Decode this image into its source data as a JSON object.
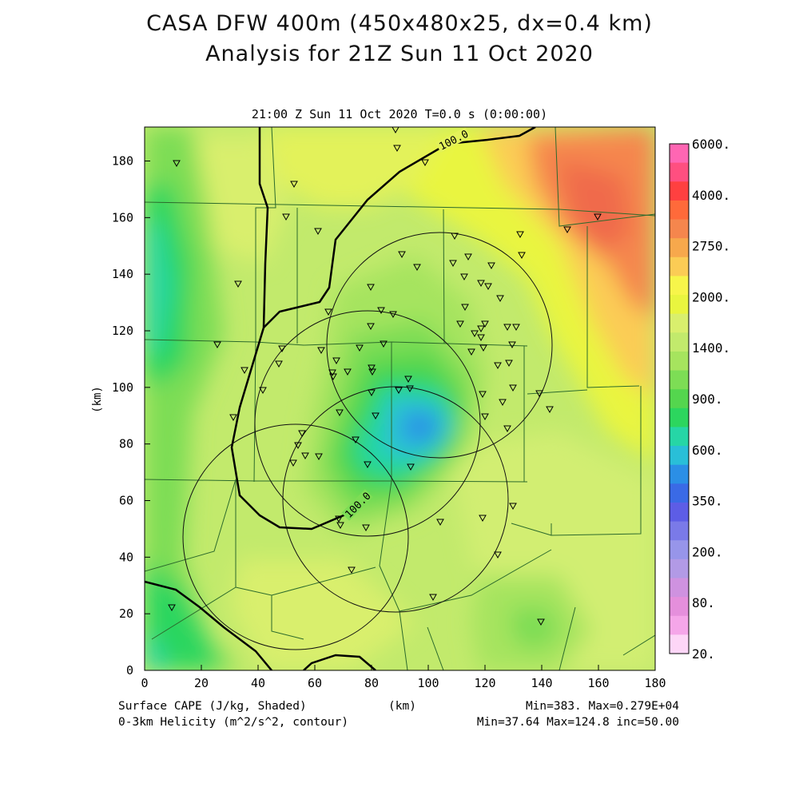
{
  "title_line1": "CASA DFW 400m (450x480x25, dx=0.4 km)",
  "title_line2": "Analysis for 21Z Sun 11 Oct 2020",
  "subtitle": "21:00 Z Sun 11 Oct 2020    T=0.0 s (0:00:00)",
  "footer": {
    "field1": "Surface CAPE (J/kg, Shaded)",
    "field2": "0-3km Helicity (m^2/s^2, contour)",
    "xunit": "(km)",
    "stats1": "Min=383. Max=0.279E+04",
    "stats2": "Min=37.64 Max=124.8 inc=50.00"
  },
  "axes": {
    "ylabel": "(km)",
    "xrange": [
      0,
      180
    ],
    "yrange": [
      0,
      192
    ],
    "xticks": [
      "0",
      "20",
      "40",
      "60",
      "80",
      "100",
      "120",
      "140",
      "160",
      "180"
    ],
    "yticks": [
      "0",
      "20",
      "40",
      "60",
      "80",
      "100",
      "120",
      "140",
      "160",
      "180"
    ]
  },
  "colorbar": {
    "labels": [
      "6000.",
      "4000.",
      "2750.",
      "2000.",
      "1400.",
      "900.",
      "600.",
      "350.",
      "200.",
      "80.",
      "20."
    ],
    "colors": [
      "#ff66b3",
      "#ff4f80",
      "#ff4040",
      "#ff6a3a",
      "#f5864d",
      "#f7a84c",
      "#fbcc55",
      "#f7f54a",
      "#e9f53f",
      "#d9ef6d",
      "#c2ea6c",
      "#a6e45e",
      "#7ddd55",
      "#54d64e",
      "#2cd65e",
      "#26d6a6",
      "#29bfd8",
      "#2b8fe6",
      "#3a6ae6",
      "#5d5de6",
      "#7a7ae8",
      "#9795ea",
      "#b29ae6",
      "#cf92e0",
      "#e58fdc",
      "#f5a6e9",
      "#fdd6f7"
    ]
  },
  "contour_labels": [
    "100.0",
    "100.0"
  ]
}
